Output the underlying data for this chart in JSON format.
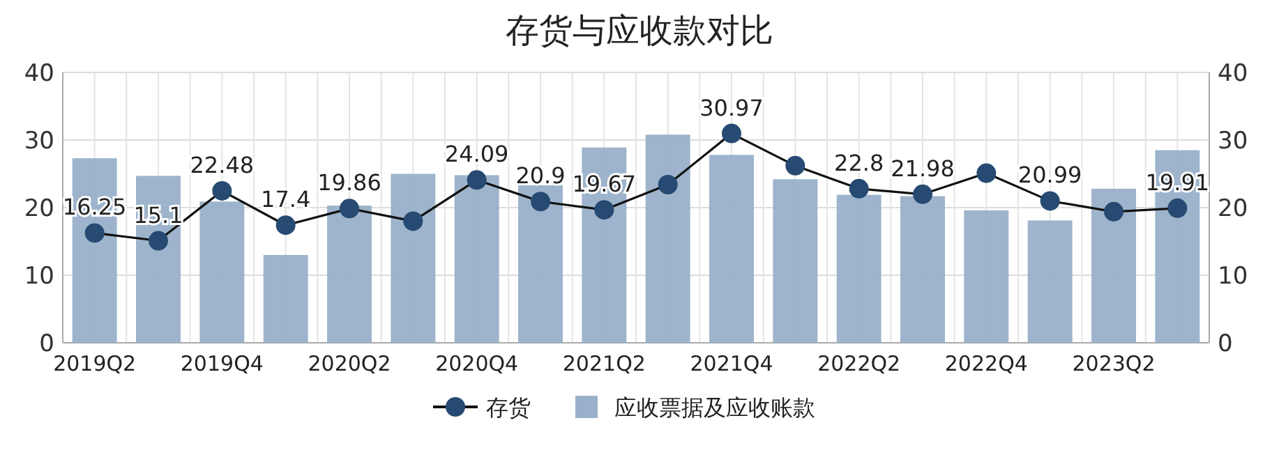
{
  "chart_data": {
    "type": "bar",
    "title": "存货与应收款对比",
    "categories": [
      "2019Q2",
      null,
      "2019Q4",
      null,
      "2020Q2",
      null,
      "2020Q4",
      null,
      "2021Q2",
      null,
      "2021Q4",
      null,
      "2022Q2",
      null,
      "2022Q4",
      null,
      "2023Q2",
      null
    ],
    "series": [
      {
        "name": "存货",
        "type": "line",
        "color": "#264a72",
        "marker": "circle",
        "values": [
          16.25,
          15.1,
          22.48,
          17.4,
          19.86,
          18.0,
          24.09,
          20.9,
          19.67,
          23.4,
          30.97,
          26.2,
          22.8,
          21.98,
          25.1,
          20.99,
          19.4,
          19.91
        ],
        "value_labels": [
          "16.25",
          "15.1",
          "22.48",
          "17.4",
          "19.86",
          null,
          "24.09",
          "20.9",
          "19.67",
          null,
          "30.97",
          null,
          "22.8",
          "21.98",
          null,
          "20.99",
          null,
          "19.91"
        ]
      },
      {
        "name": "应收票据及应收账款",
        "color": "#98b0c9",
        "values": [
          27.3,
          24.7,
          20.9,
          13.0,
          20.3,
          25.0,
          24.8,
          23.3,
          28.9,
          30.8,
          27.8,
          24.2,
          21.9,
          21.7,
          19.6,
          18.1,
          22.8,
          28.5
        ]
      }
    ],
    "ylim": [
      0,
      40
    ],
    "yticks": [
      0,
      10,
      20,
      30,
      40
    ],
    "y2lim": [
      0,
      40
    ],
    "y2ticks": [
      0,
      10,
      20,
      30,
      40
    ],
    "grid": true,
    "legend": "bottom"
  }
}
